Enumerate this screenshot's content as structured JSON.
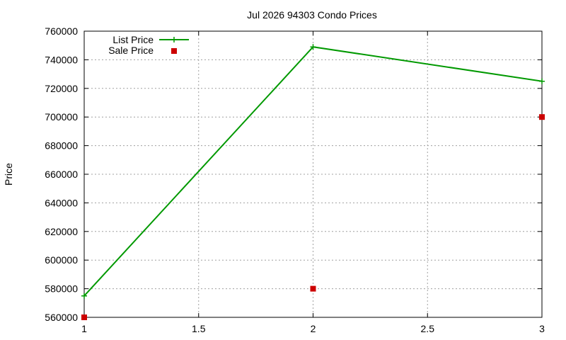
{
  "chart_data": {
    "type": "line",
    "title": "Jul 2026 94303 Condo Prices",
    "xlabel": "",
    "ylabel": "Price",
    "xlim": [
      1,
      3
    ],
    "ylim": [
      560000,
      760000
    ],
    "x_ticks": [
      1,
      1.5,
      2,
      2.5,
      3
    ],
    "x_tick_labels": [
      "1",
      "1.5",
      "2",
      "2.5",
      "3"
    ],
    "y_ticks": [
      560000,
      580000,
      600000,
      620000,
      640000,
      660000,
      680000,
      700000,
      720000,
      740000,
      760000
    ],
    "y_tick_labels": [
      "560000",
      "580000",
      "600000",
      "620000",
      "640000",
      "660000",
      "680000",
      "700000",
      "720000",
      "740000",
      "760000"
    ],
    "grid": true,
    "legend_position": "top-left",
    "series": [
      {
        "name": "List Price",
        "style": "line+points",
        "marker": "plus",
        "color": "#009900",
        "x": [
          1,
          2,
          3
        ],
        "values": [
          575000,
          749000,
          725000
        ]
      },
      {
        "name": "Sale Price",
        "style": "points",
        "marker": "square",
        "color": "#cc0000",
        "x": [
          1,
          2,
          3
        ],
        "values": [
          560000,
          580000,
          700000
        ]
      }
    ]
  }
}
